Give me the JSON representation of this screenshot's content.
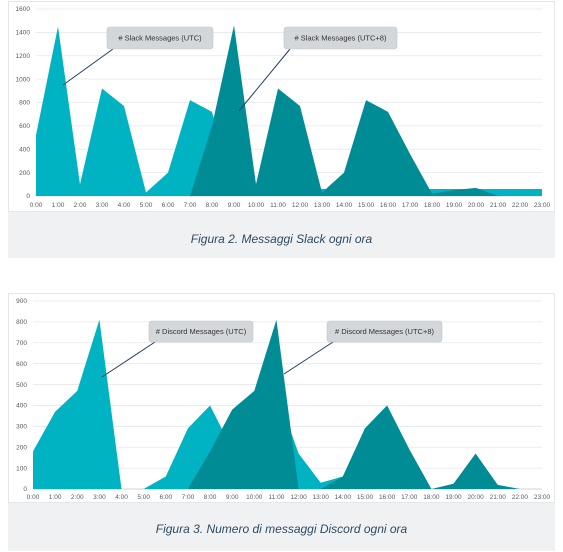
{
  "chart_data": [
    {
      "type": "area",
      "title": "",
      "categories": [
        "0:00",
        "1:00",
        "2:00",
        "3:00",
        "4:00",
        "5:00",
        "6:00",
        "7:00",
        "8:00",
        "9:00",
        "10:00",
        "11:00",
        "12:00",
        "13:00",
        "14:00",
        "15:00",
        "16:00",
        "17:00",
        "18:00",
        "19:00",
        "20:00",
        "21:00",
        "22:00",
        "23:00"
      ],
      "ylim": [
        0,
        1600
      ],
      "yticks": [
        "0",
        "200",
        "400",
        "600",
        "800",
        "1000",
        "1200",
        "1400",
        "1600"
      ],
      "grid": true,
      "series": [
        {
          "name": "# Slack Messages (UTC)",
          "color": "#00b3c2",
          "values": [
            520,
            1450,
            100,
            920,
            770,
            30,
            200,
            820,
            720,
            60,
            60,
            60,
            60,
            60,
            60,
            60,
            60,
            60,
            60,
            60,
            60,
            60,
            60,
            60
          ]
        },
        {
          "name": "# Slack Messages (UTC+8)",
          "color": "#008c95",
          "values": [
            null,
            null,
            null,
            null,
            null,
            null,
            null,
            0,
            600,
            1460,
            100,
            920,
            770,
            30,
            200,
            820,
            720,
            360,
            20,
            50,
            70,
            0,
            0,
            0
          ]
        }
      ],
      "caption": "Figura 2. Messaggi Slack ogni ora"
    },
    {
      "type": "area",
      "title": "",
      "categories": [
        "0:00",
        "1:00",
        "2:00",
        "3:00",
        "4:00",
        "5:00",
        "6:00",
        "7:00",
        "8:00",
        "9:00",
        "10:00",
        "11:00",
        "12:00",
        "13:00",
        "14:00",
        "15:00",
        "16:00",
        "17:00",
        "18:00",
        "19:00",
        "20:00",
        "21:00",
        "22:00",
        "23:00"
      ],
      "ylim": [
        0,
        900
      ],
      "yticks": [
        "0",
        "100",
        "200",
        "300",
        "400",
        "500",
        "600",
        "700",
        "800",
        "900"
      ],
      "grid": true,
      "series": [
        {
          "name": "# Discord Messages (UTC)",
          "color": "#00b3c2",
          "values": [
            180,
            370,
            470,
            810,
            0,
            0,
            60,
            290,
            400,
            190,
            380,
            470,
            170,
            30,
            60,
            290,
            400,
            190,
            0,
            0,
            0,
            0,
            0,
            0
          ]
        },
        {
          "name": "# Discord Messages (UTC+8)",
          "color": "#008c95",
          "values": [
            null,
            null,
            null,
            null,
            null,
            null,
            null,
            0,
            180,
            380,
            470,
            810,
            0,
            0,
            60,
            290,
            400,
            190,
            0,
            25,
            170,
            20,
            0,
            0
          ]
        }
      ],
      "caption": "Figura 3. Numero di messaggi Discord ogni ora"
    }
  ]
}
